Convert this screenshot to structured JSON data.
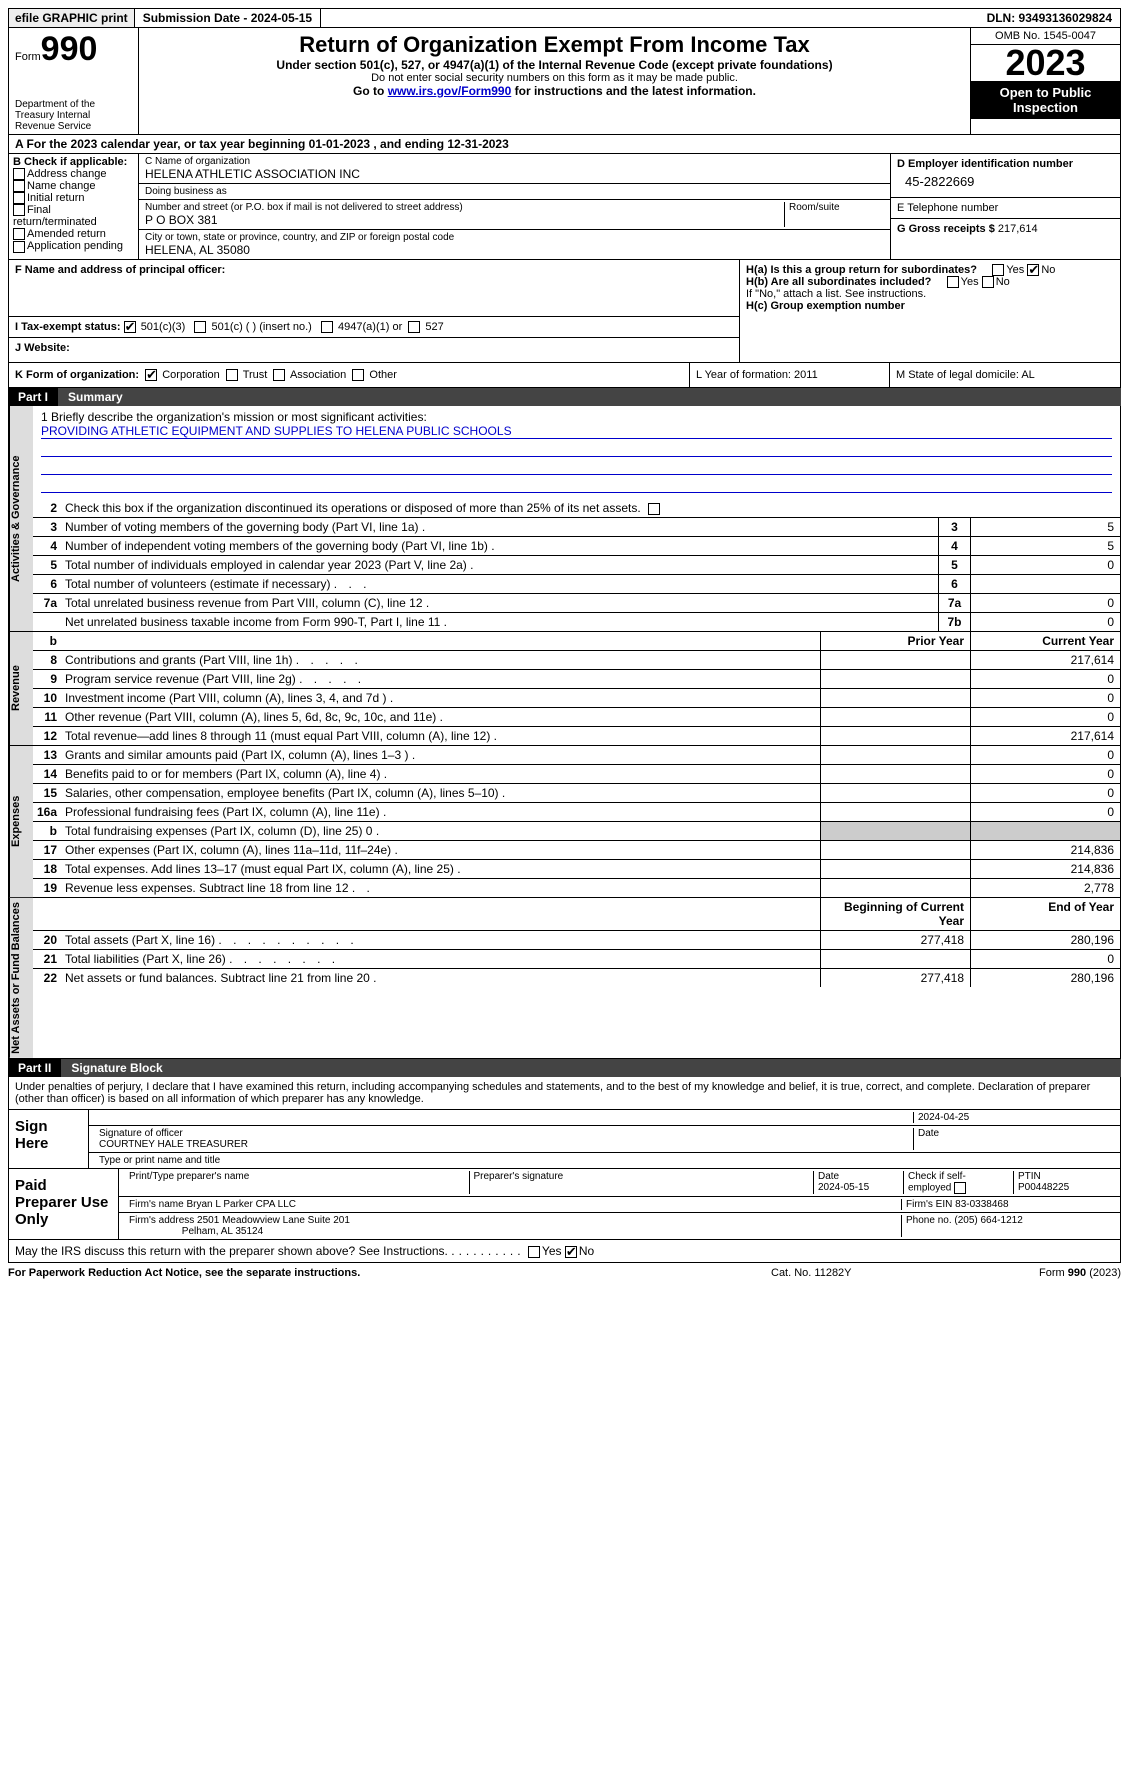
{
  "topbar": {
    "efile_btn": "efile GRAPHIC print",
    "subdate_label": "Submission Date - 2024-05-15",
    "dln": "DLN: 93493136029824"
  },
  "header": {
    "form_label": "Form",
    "form_num": "990",
    "dept": "Department of the Treasury Internal Revenue Service",
    "title": "Return of Organization Exempt From Income Tax",
    "sub1": "Under section 501(c), 527, or 4947(a)(1) of the Internal Revenue Code (except private foundations)",
    "sub2": "Do not enter social security numbers on this form as it may be made public.",
    "sub3_pre": "Go to ",
    "sub3_link": "www.irs.gov/Form990",
    "sub3_post": " for instructions and the latest information.",
    "omb": "OMB No. 1545-0047",
    "year": "2023",
    "open": "Open to Public Inspection"
  },
  "row_a": "A For the 2023 calendar year, or tax year beginning 01-01-2023   , and ending 12-31-2023",
  "col_b": {
    "title": "B Check if applicable:",
    "items": [
      "Address change",
      "Name change",
      "Initial return",
      "Final return/terminated",
      "Amended return",
      "Application pending"
    ]
  },
  "col_c": {
    "name_lbl": "C Name of organization",
    "name": "HELENA ATHLETIC ASSOCIATION INC",
    "dba_lbl": "Doing business as",
    "dba": "",
    "addr_lbl": "Number and street (or P.O. box if mail is not delivered to street address)",
    "room_lbl": "Room/suite",
    "addr": "P O BOX 381",
    "city_lbl": "City or town, state or province, country, and ZIP or foreign postal code",
    "city": "HELENA, AL  35080"
  },
  "col_d": {
    "ein_lbl": "D Employer identification number",
    "ein": "45-2822669",
    "tel_lbl": "E Telephone number",
    "tel": "",
    "gross_lbl": "G Gross receipts $ ",
    "gross": "217,614"
  },
  "row_f": {
    "f_lbl": "F  Name and address of principal officer:",
    "f_val": "",
    "ha_lbl": "H(a)  Is this a group return for subordinates?",
    "hb_lbl": "H(b)  Are all subordinates included?",
    "h_note": "If \"No,\" attach a list. See instructions.",
    "hc_lbl": "H(c)  Group exemption number"
  },
  "row_i": {
    "lbl": "I  Tax-exempt status:",
    "opts": [
      "501(c)(3)",
      "501(c) (  ) (insert no.)",
      "4947(a)(1) or",
      "527"
    ]
  },
  "row_j": {
    "lbl": "J  Website:",
    "val": ""
  },
  "row_k": {
    "k_lbl": "K Form of organization:",
    "k_opts": [
      "Corporation",
      "Trust",
      "Association",
      "Other"
    ],
    "l": "L Year of formation: 2011",
    "m": "M State of legal domicile: AL"
  },
  "part1": {
    "num": "Part I",
    "title": "Summary"
  },
  "briefly": {
    "lbl": "1  Briefly describe the organization's mission or most significant activities:",
    "txt": "PROVIDING ATHLETIC EQUIPMENT AND SUPPLIES TO HELENA PUBLIC SCHOOLS"
  },
  "line2": "Check this box       if the organization discontinued its operations or disposed of more than 25% of its net assets.",
  "gov_rows": [
    {
      "ln": "3",
      "txt": "Number of voting members of the governing body (Part VI, line 1a)",
      "num": "3",
      "val": "5"
    },
    {
      "ln": "4",
      "txt": "Number of independent voting members of the governing body (Part VI, line 1b)",
      "num": "4",
      "val": "5"
    },
    {
      "ln": "5",
      "txt": "Total number of individuals employed in calendar year 2023 (Part V, line 2a)",
      "num": "5",
      "val": "0"
    },
    {
      "ln": "6",
      "txt": "Total number of volunteers (estimate if necessary)",
      "num": "6",
      "val": ""
    },
    {
      "ln": "7a",
      "txt": "Total unrelated business revenue from Part VIII, column (C), line 12",
      "num": "7a",
      "val": "0"
    },
    {
      "ln": "",
      "txt": "Net unrelated business taxable income from Form 990-T, Part I, line 11",
      "num": "7b",
      "val": "0"
    }
  ],
  "col_hdrs": {
    "ln": "b",
    "prior": "Prior Year",
    "current": "Current Year"
  },
  "rev_rows": [
    {
      "ln": "8",
      "txt": "Contributions and grants (Part VIII, line 1h)",
      "prior": "",
      "cur": "217,614"
    },
    {
      "ln": "9",
      "txt": "Program service revenue (Part VIII, line 2g)",
      "prior": "",
      "cur": "0"
    },
    {
      "ln": "10",
      "txt": "Investment income (Part VIII, column (A), lines 3, 4, and 7d )",
      "prior": "",
      "cur": "0"
    },
    {
      "ln": "11",
      "txt": "Other revenue (Part VIII, column (A), lines 5, 6d, 8c, 9c, 10c, and 11e)",
      "prior": "",
      "cur": "0"
    },
    {
      "ln": "12",
      "txt": "Total revenue—add lines 8 through 11 (must equal Part VIII, column (A), line 12)",
      "prior": "",
      "cur": "217,614"
    }
  ],
  "exp_rows": [
    {
      "ln": "13",
      "txt": "Grants and similar amounts paid (Part IX, column (A), lines 1–3 )",
      "prior": "",
      "cur": "0"
    },
    {
      "ln": "14",
      "txt": "Benefits paid to or for members (Part IX, column (A), line 4)",
      "prior": "",
      "cur": "0"
    },
    {
      "ln": "15",
      "txt": "Salaries, other compensation, employee benefits (Part IX, column (A), lines 5–10)",
      "prior": "",
      "cur": "0"
    },
    {
      "ln": "16a",
      "txt": "Professional fundraising fees (Part IX, column (A), line 11e)",
      "prior": "",
      "cur": "0"
    },
    {
      "ln": "b",
      "txt": "Total fundraising expenses (Part IX, column (D), line 25) 0",
      "prior": "SHADE",
      "cur": "SHADE"
    },
    {
      "ln": "17",
      "txt": "Other expenses (Part IX, column (A), lines 11a–11d, 11f–24e)",
      "prior": "",
      "cur": "214,836"
    },
    {
      "ln": "18",
      "txt": "Total expenses. Add lines 13–17 (must equal Part IX, column (A), line 25)",
      "prior": "",
      "cur": "214,836"
    },
    {
      "ln": "19",
      "txt": "Revenue less expenses. Subtract line 18 from line 12",
      "prior": "",
      "cur": "2,778"
    }
  ],
  "net_hdrs": {
    "beg": "Beginning of Current Year",
    "end": "End of Year"
  },
  "net_rows": [
    {
      "ln": "20",
      "txt": "Total assets (Part X, line 16)",
      "beg": "277,418",
      "end": "280,196"
    },
    {
      "ln": "21",
      "txt": "Total liabilities (Part X, line 26)",
      "beg": "",
      "end": "0"
    },
    {
      "ln": "22",
      "txt": "Net assets or fund balances. Subtract line 21 from line 20",
      "beg": "277,418",
      "end": "280,196"
    }
  ],
  "part2": {
    "num": "Part II",
    "title": "Signature Block"
  },
  "sig_decl": "Under penalties of perjury, I declare that I have examined this return, including accompanying schedules and statements, and to the best of my knowledge and belief, it is true, correct, and complete. Declaration of preparer (other than officer) is based on all information of which preparer has any knowledge.",
  "sign_here": {
    "lbl": "Sign Here",
    "date": "2024-04-25",
    "sig_lbl": "Signature of officer",
    "name": "COURTNEY HALE  TREASURER",
    "type_lbl": "Type or print name and title",
    "date_lbl": "Date"
  },
  "paid": {
    "lbl": "Paid Preparer Use Only",
    "c1": "Print/Type preparer's name",
    "c2": "Preparer's signature",
    "c3_lbl": "Date",
    "c3": "2024-05-15",
    "c4_lbl": "Check       if self-employed",
    "c5_lbl": "PTIN",
    "c5": "P00448225",
    "firm_lbl": "Firm's name   ",
    "firm": "Bryan L Parker CPA LLC",
    "ein_lbl": "Firm's EIN  ",
    "ein": "83-0338468",
    "addr_lbl": "Firm's address ",
    "addr1": "2501 Meadowview Lane Suite 201",
    "addr2": "Pelham, AL  35124",
    "phone_lbl": "Phone no. ",
    "phone": "(205) 664-1212"
  },
  "discuss": "May the IRS discuss this return with the preparer shown above? See Instructions.",
  "footer": {
    "l": "For Paperwork Reduction Act Notice, see the separate instructions.",
    "m": "Cat. No. 11282Y",
    "r": "Form 990 (2023)"
  },
  "vtabs": {
    "gov": "Activities & Governance",
    "rev": "Revenue",
    "exp": "Expenses",
    "net": "Net Assets or Fund Balances"
  }
}
